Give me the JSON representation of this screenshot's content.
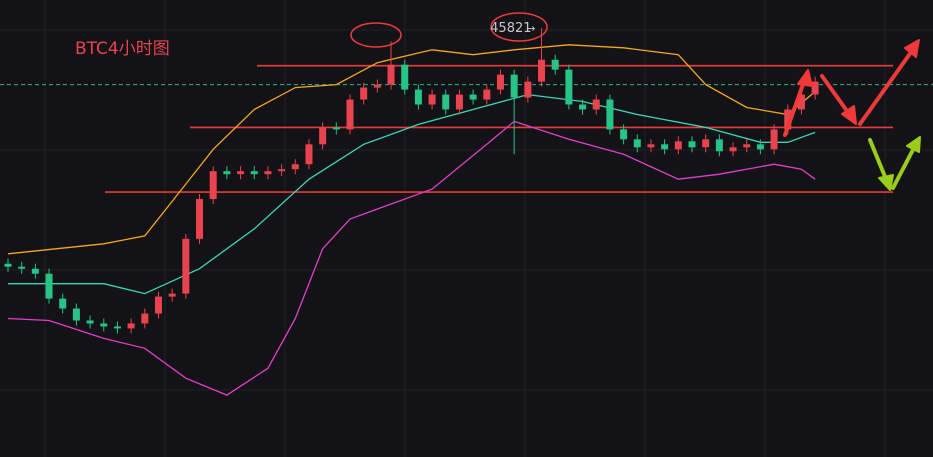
{
  "chart_data": {
    "type": "candlestick",
    "title": "BTC4小时图",
    "open": [
      42980,
      42944,
      42920,
      42860,
      42560,
      42440,
      42296,
      42260,
      42224,
      42200,
      42260,
      42380,
      42584,
      42620,
      43280,
      43760,
      44096,
      44060,
      44096,
      44060,
      44096,
      44120,
      44180,
      44420,
      44624,
      44600,
      44960,
      45104,
      45140,
      45380,
      45080,
      44900,
      45020,
      44840,
      45020,
      44960,
      45080,
      45260,
      44984,
      45176,
      45440,
      45320,
      44900,
      44840,
      44960,
      44600,
      44480,
      44384,
      44420,
      44360,
      44456,
      44384,
      44480,
      44336,
      44384,
      44420,
      44360,
      44600,
      44840,
      45020
    ],
    "high": [
      43040,
      43004,
      42980,
      42920,
      42620,
      42500,
      42356,
      42320,
      42284,
      42320,
      42440,
      42644,
      42680,
      43340,
      43820,
      44156,
      44156,
      44156,
      44156,
      44156,
      44180,
      44240,
      44480,
      44684,
      44684,
      45020,
      45164,
      45200,
      45660,
      45440,
      45140,
      45080,
      45080,
      45080,
      45080,
      45140,
      45320,
      45320,
      45236,
      45821,
      45500,
      45380,
      44960,
      45020,
      45020,
      44660,
      44540,
      44480,
      44480,
      44516,
      44516,
      44540,
      44540,
      44444,
      44480,
      44480,
      44660,
      44900,
      45080,
      45236
    ],
    "low": [
      42884,
      42860,
      42800,
      42500,
      42380,
      42236,
      42200,
      42164,
      42140,
      42140,
      42200,
      42320,
      42524,
      42560,
      43220,
      43700,
      44000,
      44000,
      44000,
      44000,
      44036,
      44060,
      44120,
      44360,
      44540,
      44540,
      44900,
      45044,
      45080,
      45020,
      44840,
      44840,
      44780,
      44780,
      44900,
      44900,
      45020,
      44300,
      44924,
      45116,
      45260,
      44840,
      44780,
      44780,
      44540,
      44420,
      44324,
      44324,
      44300,
      44300,
      44324,
      44324,
      44276,
      44276,
      44324,
      44300,
      44300,
      44540,
      44780,
      44960
    ],
    "close": [
      42944,
      42920,
      42860,
      42560,
      42440,
      42296,
      42260,
      42224,
      42200,
      42260,
      42380,
      42584,
      42620,
      43280,
      43760,
      44096,
      44060,
      44096,
      44060,
      44096,
      44120,
      44180,
      44420,
      44624,
      44600,
      44960,
      45104,
      45140,
      45380,
      45080,
      44900,
      45020,
      44840,
      45020,
      44960,
      45080,
      45260,
      44984,
      45176,
      45440,
      45320,
      44900,
      44840,
      44960,
      44600,
      44480,
      44384,
      44420,
      44360,
      44456,
      44384,
      44480,
      44336,
      44384,
      44420,
      44360,
      44600,
      44840,
      45020,
      45176
    ],
    "up_color": "#e8434f",
    "down_color": "#26c487",
    "ylim": [
      40650,
      46160
    ],
    "peak_index": 39,
    "peak_arrow": "→",
    "bands": [
      {
        "color": "#f5a623",
        "x": [
          0,
          7,
          10,
          13,
          15,
          18,
          21,
          24,
          27,
          31,
          34,
          37,
          41,
          45,
          49,
          51,
          54,
          57,
          59
        ],
        "values": [
          43100,
          43220,
          43316,
          43940,
          44360,
          44840,
          45104,
          45140,
          45404,
          45560,
          45500,
          45560,
          45620,
          45584,
          45500,
          45140,
          44864,
          44780,
          45056
        ]
      },
      {
        "color": "#3dd6b5",
        "x": [
          0,
          7,
          10,
          14,
          18,
          22,
          26,
          30,
          34,
          38,
          42,
          46,
          51,
          55,
          57,
          59
        ],
        "values": [
          42740,
          42740,
          42620,
          42920,
          43400,
          44000,
          44420,
          44660,
          44840,
          45020,
          44936,
          44780,
          44624,
          44444,
          44444,
          44564
        ]
      },
      {
        "color": "#e040c8",
        "x": [
          0,
          3,
          7,
          10,
          13,
          16,
          19,
          21,
          23,
          25,
          27,
          31,
          35,
          37,
          41,
          45,
          49,
          52,
          56,
          58,
          59
        ],
        "values": [
          42320,
          42296,
          42080,
          41960,
          41600,
          41396,
          41720,
          42320,
          43160,
          43520,
          43640,
          43880,
          44420,
          44696,
          44480,
          44300,
          44000,
          44060,
          44180,
          44120,
          44000
        ]
      }
    ],
    "levels": [
      45368,
      44624,
      43844
    ],
    "level_color": "#e83c3c",
    "last_price_line": 45140,
    "last_price_color": "#2bb38f"
  }
}
